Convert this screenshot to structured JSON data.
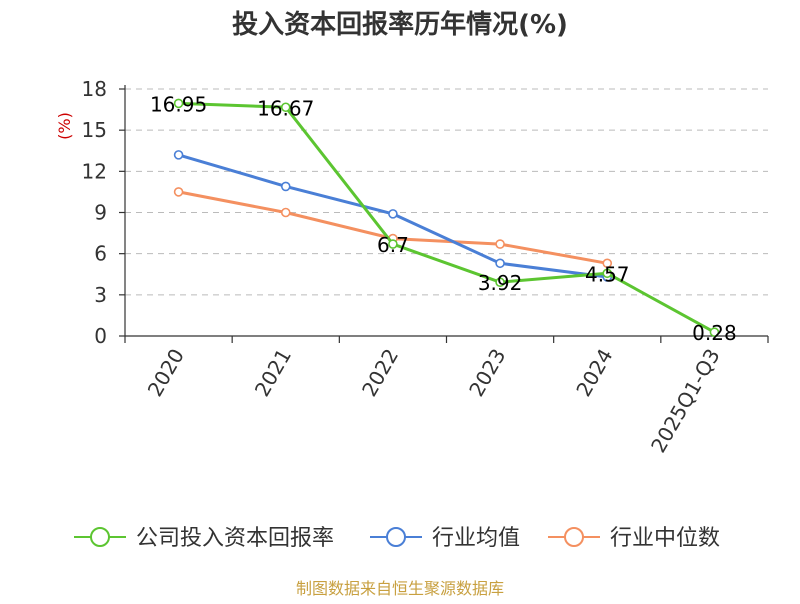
{
  "chart_data": {
    "type": "line",
    "title": "投入资本回报率历年情况(%)",
    "ylabel": "(%)",
    "xlabel": "",
    "categories": [
      "2020",
      "2021",
      "2022",
      "2023",
      "2024",
      "2025Q1-Q3"
    ],
    "ylim": [
      0,
      18
    ],
    "yticks": [
      "0",
      "3",
      "6",
      "9",
      "12",
      "15",
      "18"
    ],
    "grid": "horizontal dashed",
    "legend_position": "bottom",
    "series": [
      {
        "name": "公司投入资本回报率",
        "color": "#5cc531",
        "values": [
          16.95,
          16.67,
          6.7,
          3.92,
          4.57,
          0.28
        ],
        "labels": [
          "16.95",
          "16.67",
          "6.7",
          "3.92",
          "4.57",
          "0.28"
        ]
      },
      {
        "name": "行业均值",
        "color": "#4a7fd6",
        "values": [
          13.2,
          10.9,
          8.9,
          5.3,
          4.3,
          null
        ]
      },
      {
        "name": "行业中位数",
        "color": "#f49060",
        "values": [
          10.5,
          9.0,
          7.1,
          6.7,
          5.3,
          null
        ]
      }
    ]
  },
  "source_text": "制图数据来自恒生聚源数据库"
}
